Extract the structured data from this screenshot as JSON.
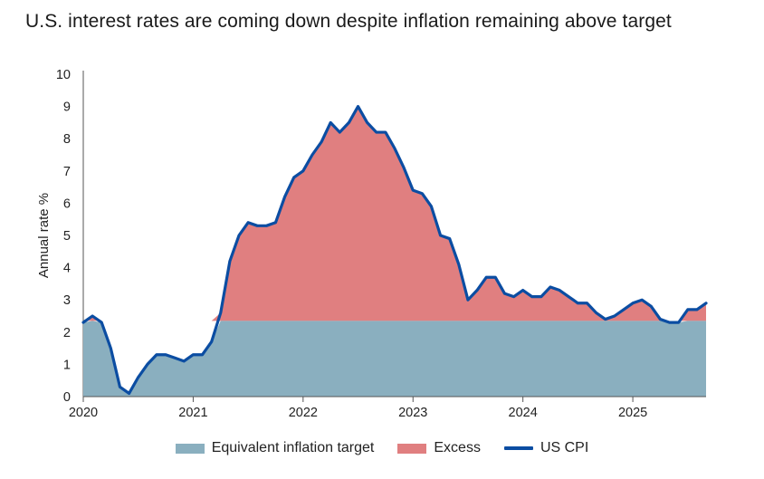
{
  "chart_data": {
    "type": "area",
    "title": "U.S. interest rates are coming down despite inflation remaining above target",
    "xlabel": "",
    "ylabel": "Annual rate %",
    "ylim": [
      0,
      10
    ],
    "yticks": [
      "0",
      "1",
      "2",
      "3",
      "4",
      "5",
      "6",
      "7",
      "8",
      "9",
      "10"
    ],
    "xticks": [
      {
        "label": "2020",
        "value": 2020.0
      },
      {
        "label": "2021",
        "value": 2021.0
      },
      {
        "label": "2022",
        "value": 2022.0
      },
      {
        "label": "2023",
        "value": 2023.0
      },
      {
        "label": "2024",
        "value": 2024.0
      },
      {
        "label": "2025",
        "value": 2025.0
      }
    ],
    "x_start": 2020.0,
    "x_step": 0.08333,
    "target_value": 2.35,
    "series": [
      {
        "name": "US CPI",
        "color": "#0b4da2",
        "values": [
          2.3,
          2.5,
          2.3,
          1.5,
          0.3,
          0.1,
          0.6,
          1.0,
          1.3,
          1.3,
          1.2,
          1.1,
          1.3,
          1.3,
          1.7,
          2.6,
          4.2,
          5.0,
          5.4,
          5.3,
          5.3,
          5.4,
          6.2,
          6.8,
          7.0,
          7.5,
          7.9,
          8.5,
          8.2,
          8.5,
          9.0,
          8.5,
          8.2,
          8.2,
          7.7,
          7.1,
          6.4,
          6.3,
          5.9,
          5.0,
          4.9,
          4.1,
          3.0,
          3.3,
          3.7,
          3.7,
          3.2,
          3.1,
          3.3,
          3.1,
          3.1,
          3.4,
          3.3,
          3.1,
          2.9,
          2.9,
          2.6,
          2.4,
          2.5,
          2.7,
          2.9,
          3.0,
          2.8,
          2.4,
          2.3,
          2.3,
          2.7,
          2.7,
          2.9
        ]
      }
    ],
    "legend": [
      {
        "name": "Equivalent inflation target",
        "color": "#8aafbf",
        "kind": "area"
      },
      {
        "name": "Excess",
        "color": "#e07f80",
        "kind": "area"
      },
      {
        "name": "US CPI",
        "color": "#0b4da2",
        "kind": "line"
      }
    ],
    "legend_position": "bottom",
    "grid": false
  }
}
